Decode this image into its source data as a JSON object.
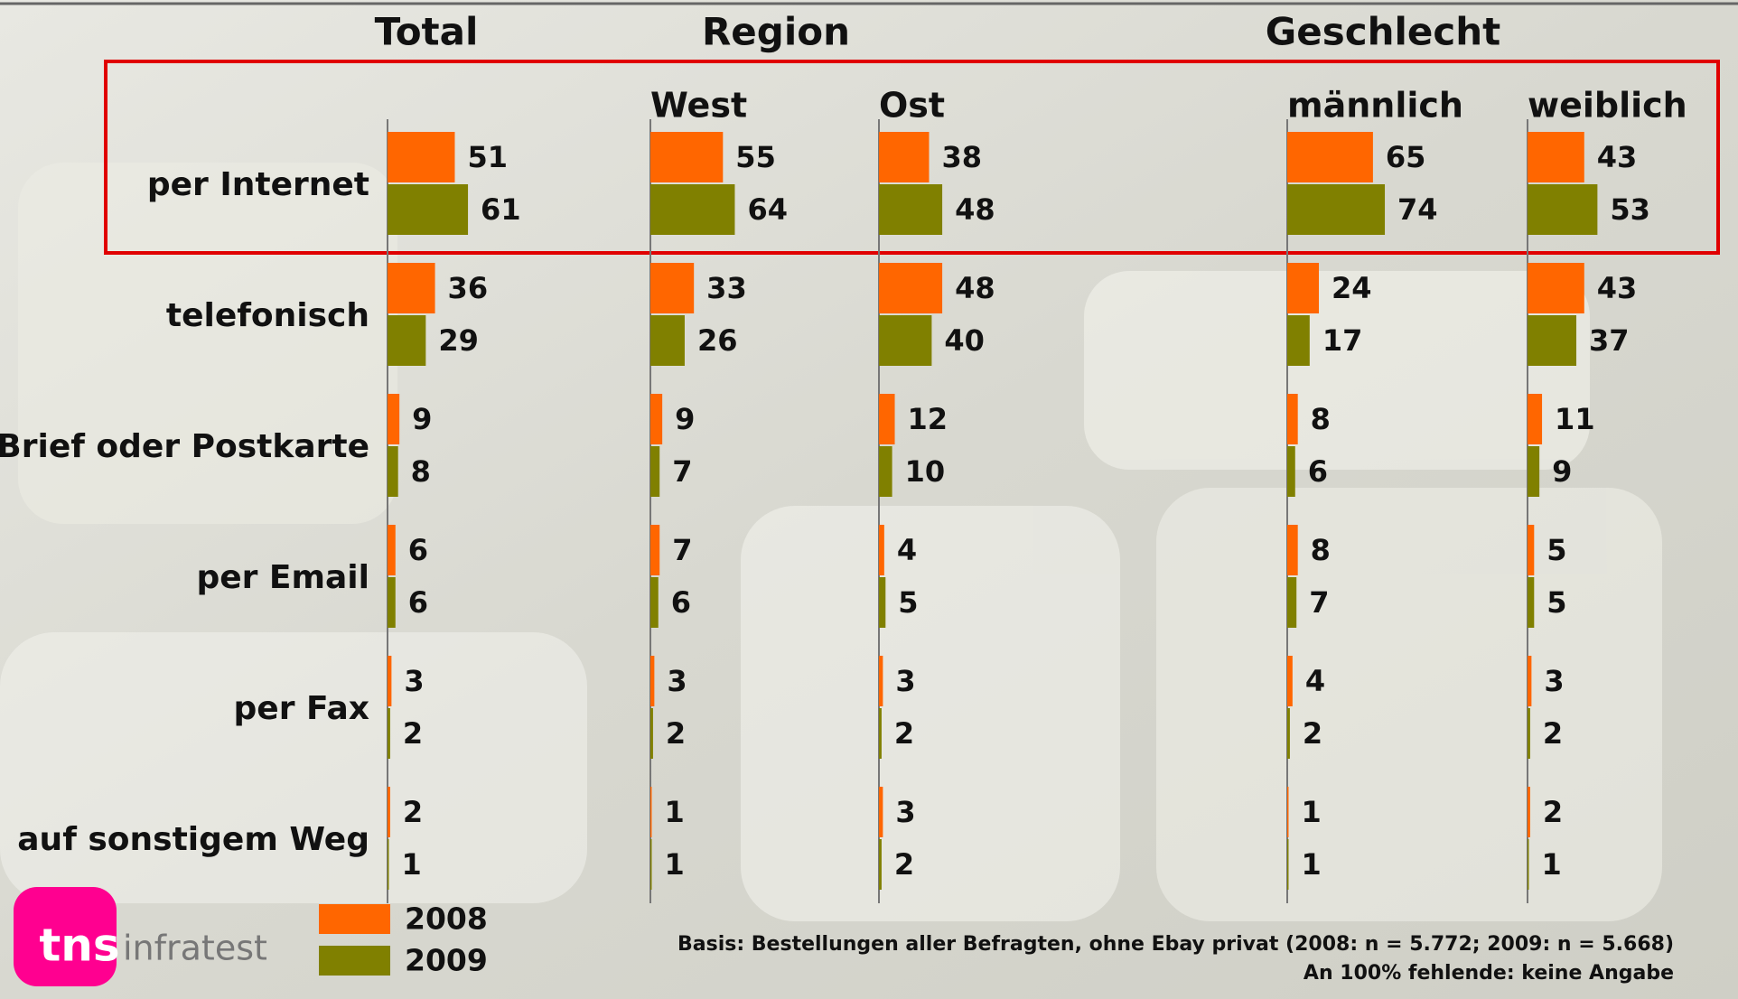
{
  "headers": [
    "Total",
    "Region",
    "Geschlecht"
  ],
  "chart_data": [
    {
      "type": "bar",
      "categories": [
        "per Internet",
        "telefonisch",
        "Brief oder Postkarte",
        "per Email",
        "per Fax",
        "auf sonstigem Weg"
      ],
      "series": [
        {
          "name": "2008",
          "color": "#ff6600",
          "values": [
            51,
            36,
            9,
            6,
            3,
            2
          ]
        },
        {
          "name": "2009",
          "color": "#808000",
          "values": [
            61,
            29,
            8,
            6,
            2,
            1
          ]
        }
      ]
    },
    {
      "type": "bar",
      "title": "West",
      "series": [
        {
          "name": "2008",
          "color": "#ff6600",
          "values": [
            55,
            33,
            9,
            7,
            3,
            1
          ]
        },
        {
          "name": "2009",
          "color": "#808000",
          "values": [
            64,
            26,
            7,
            6,
            2,
            1
          ]
        }
      ]
    },
    {
      "type": "bar",
      "title": "Ost",
      "series": [
        {
          "name": "2008",
          "color": "#ff6600",
          "values": [
            38,
            48,
            12,
            4,
            3,
            3
          ]
        },
        {
          "name": "2009",
          "color": "#808000",
          "values": [
            48,
            40,
            10,
            5,
            2,
            2
          ]
        }
      ]
    },
    {
      "type": "bar",
      "title": "männlich",
      "series": [
        {
          "name": "2008",
          "color": "#ff6600",
          "values": [
            65,
            24,
            8,
            8,
            4,
            1
          ]
        },
        {
          "name": "2009",
          "color": "#808000",
          "values": [
            74,
            17,
            6,
            7,
            2,
            1
          ]
        }
      ]
    },
    {
      "type": "bar",
      "title": "weiblich",
      "series": [
        {
          "name": "2008",
          "color": "#ff6600",
          "values": [
            43,
            43,
            11,
            5,
            3,
            2
          ]
        },
        {
          "name": "2009",
          "color": "#808000",
          "values": [
            53,
            37,
            9,
            5,
            2,
            1
          ]
        }
      ]
    }
  ],
  "footer": [
    "Basis: Bestellungen aller Befragten, ohne Ebay privat (2008: n = 5.772; 2009: n = 5.668)",
    "An 100% fehlende: keine Angabe"
  ],
  "logo": {
    "brand": "tns",
    "name": "infratest"
  }
}
